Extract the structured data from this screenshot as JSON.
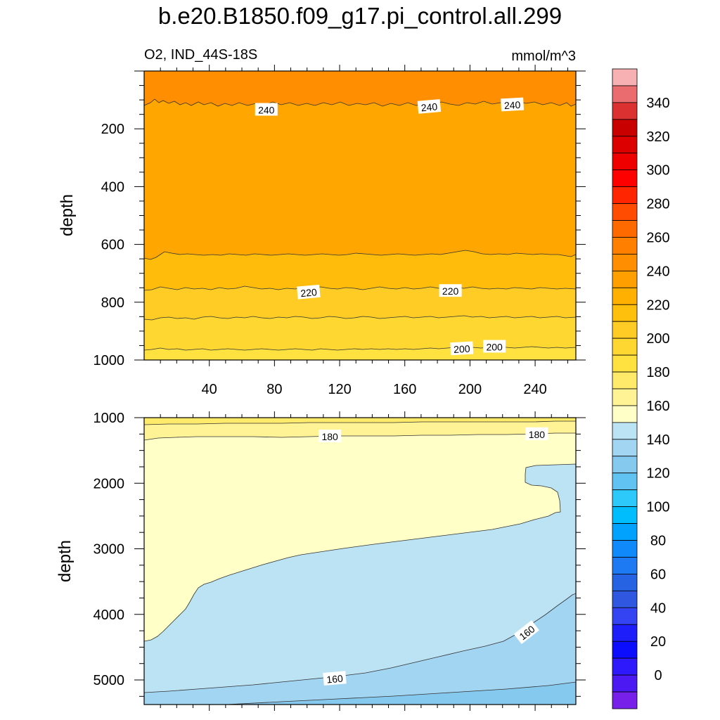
{
  "page_title": "b.e20.B1850.f09_g17.pi_control.all.299",
  "chart_data": [
    {
      "type": "heatmap",
      "subtitle_left": "O2, IND_44S-18S",
      "subtitle_right": "mmol/m^3",
      "ylabel": "depth",
      "xlim": [
        0,
        265
      ],
      "ylim": [
        0,
        1000
      ],
      "y_reversed": true,
      "xticks": [
        40,
        80,
        120,
        160,
        200,
        240
      ],
      "xtick_labels": [
        "40",
        "80",
        "120",
        "160",
        "200",
        "240"
      ],
      "yticks": [
        200,
        400,
        600,
        800,
        1000
      ],
      "ytick_labels": [
        "200",
        "400",
        "600",
        "800",
        "1000"
      ],
      "contour_levels": [
        240,
        230,
        220,
        210,
        200
      ],
      "contour_depths": [
        118,
        640,
        760,
        860,
        965
      ],
      "contour_labels": [
        {
          "text": "240",
          "x": 75,
          "depth": 135,
          "angle": 0
        },
        {
          "text": "240",
          "x": 175,
          "depth": 125,
          "angle": -5
        },
        {
          "text": "240",
          "x": 226,
          "depth": 118,
          "angle": -3
        },
        {
          "text": "220",
          "x": 101,
          "depth": 767,
          "angle": -5
        },
        {
          "text": "220",
          "x": 188,
          "depth": 762,
          "angle": 0
        },
        {
          "text": "200",
          "x": 195,
          "depth": 962,
          "angle": -3
        },
        {
          "text": "200",
          "x": 215,
          "depth": 955,
          "angle": 0
        }
      ]
    },
    {
      "type": "heatmap",
      "ylabel": "depth",
      "xlim": [
        0,
        265
      ],
      "ylim": [
        1000,
        5375
      ],
      "y_reversed": true,
      "yticks": [
        1000,
        2000,
        3000,
        4000,
        5000
      ],
      "ytick_labels": [
        "1000",
        "2000",
        "3000",
        "4000",
        "5000"
      ],
      "contour_levels": [
        190,
        180,
        170,
        160,
        150
      ],
      "contour_labels": [
        {
          "text": "180",
          "x": 114,
          "depth": 1290,
          "angle": 0
        },
        {
          "text": "180",
          "x": 241,
          "depth": 1255,
          "angle": 0
        },
        {
          "text": "160",
          "x": 235,
          "depth": 4280,
          "angle": -38
        },
        {
          "text": "160",
          "x": 117,
          "depth": 4985,
          "angle": -5
        }
      ]
    }
  ],
  "colorbar": {
    "label_values": [
      340,
      320,
      300,
      280,
      260,
      240,
      220,
      200,
      180,
      160,
      140,
      120,
      100,
      80,
      60,
      40,
      20,
      0
    ],
    "labels": [
      "340",
      "320",
      "300",
      "280",
      "260",
      "240",
      "220",
      "200",
      "180",
      "160",
      "140",
      "120",
      "100",
      "80",
      "60",
      "40",
      "20",
      "0"
    ],
    "colors_top_to_bottom": [
      "#f8b1b3",
      "#ea6c6e",
      "#dc3131",
      "#c80000",
      "#dd0000",
      "#ee0000",
      "#ff0000",
      "#ff2500",
      "#ff4c00",
      "#ff6a00",
      "#ff7f00",
      "#ff8f00",
      "#ffa000",
      "#ffb000",
      "#ffbf0c",
      "#ffcb25",
      "#ffd730",
      "#ffe23f",
      "#ffea6a",
      "#fff396",
      "#ffffc8",
      "#bce3f4",
      "#a2d5f2",
      "#86c9ef",
      "#60c3f2",
      "#2dc9fb",
      "#00bdfd",
      "#00a2fd",
      "#1089fb",
      "#1e7af3",
      "#2563e3",
      "#2f57e0",
      "#3544f3",
      "#1e1efb",
      "#0d0dfd",
      "#2d19fb",
      "#4d19f3",
      "#7620ea"
    ]
  }
}
